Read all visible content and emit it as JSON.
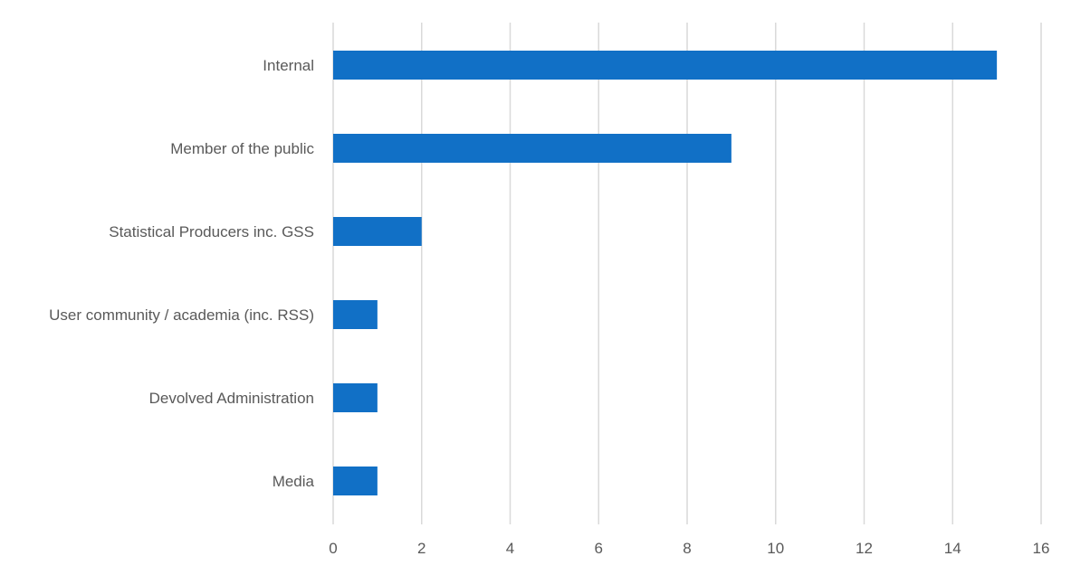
{
  "chart_data": {
    "type": "bar",
    "orientation": "horizontal",
    "categories": [
      "Internal",
      "Member of the public",
      "Statistical Producers inc. GSS",
      "User community / academia (inc. RSS)",
      "Devolved Administration",
      "Media"
    ],
    "values": [
      15,
      9,
      2,
      1,
      1,
      1
    ],
    "title": "",
    "xlabel": "",
    "ylabel": "",
    "xlim": [
      0,
      16
    ],
    "x_ticks": [
      "0",
      "2",
      "4",
      "6",
      "8",
      "10",
      "12",
      "14",
      "16"
    ],
    "grid": "vertical",
    "legend": "none",
    "bar_color": "#1170c6",
    "grid_color": "#d9d9d9",
    "label_color": "#595959"
  }
}
